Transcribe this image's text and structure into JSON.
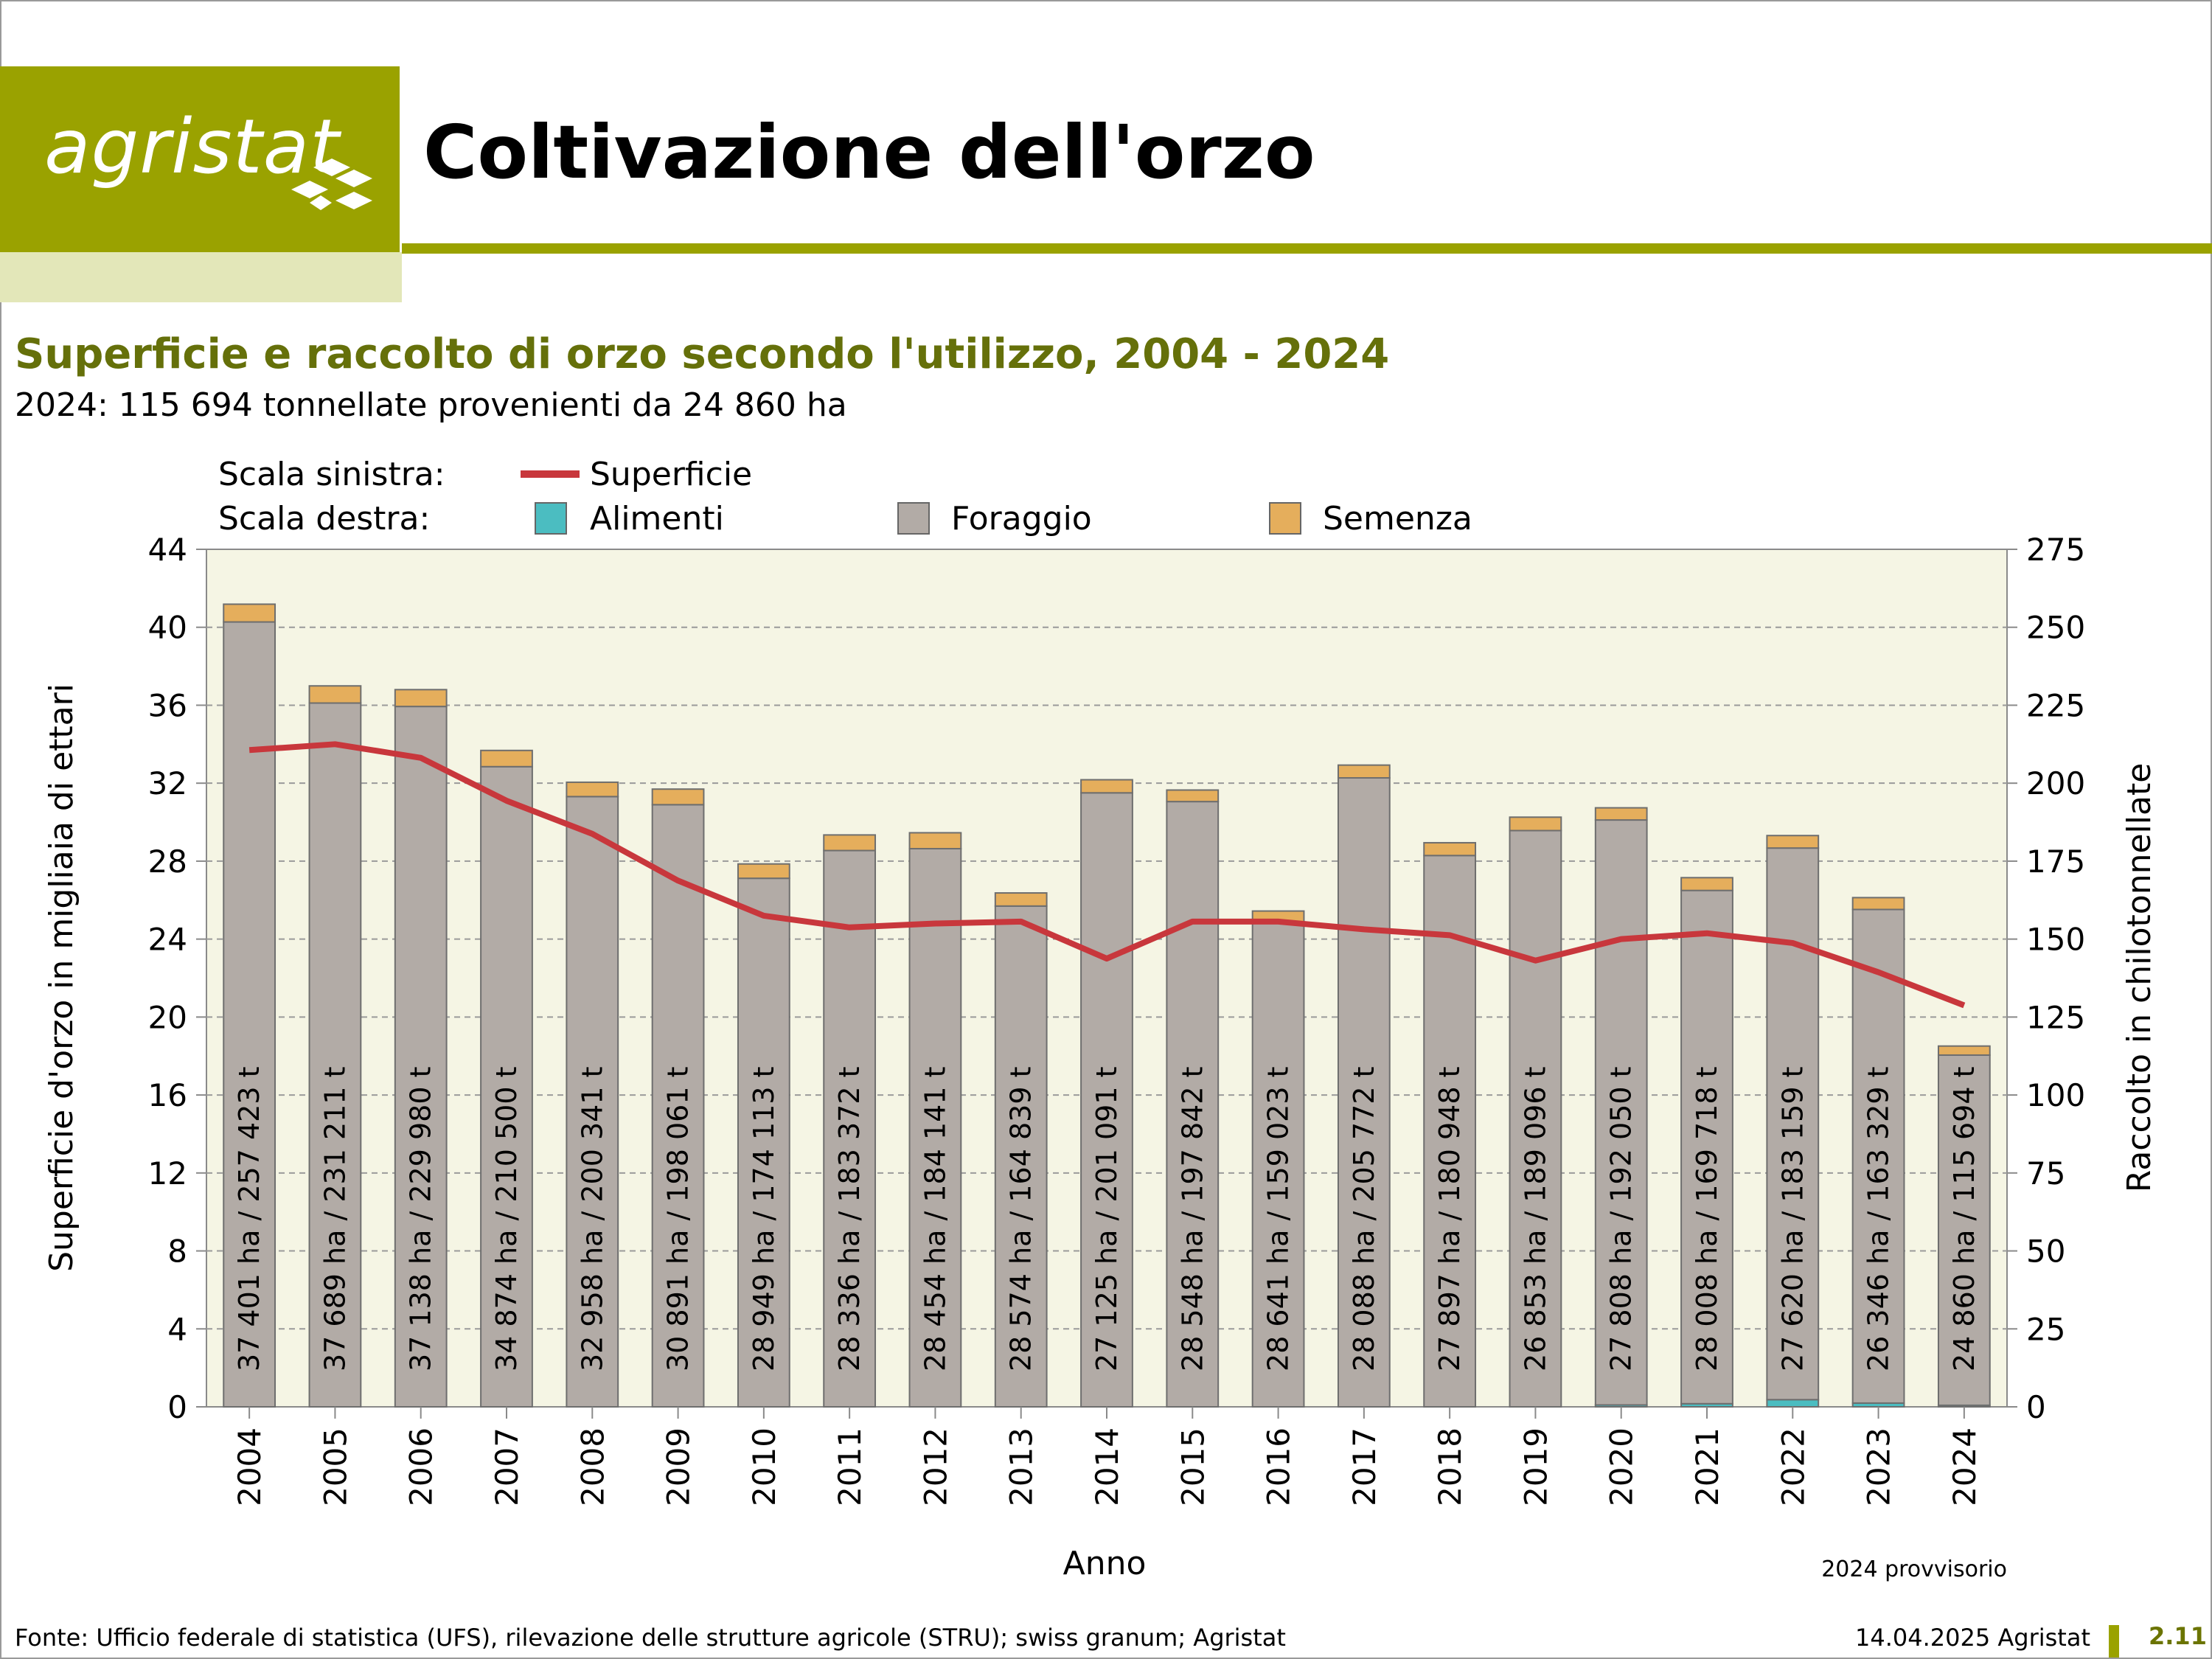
{
  "header": {
    "logo_text": "agristat",
    "page_title": "Coltivazione dell'orzo"
  },
  "chart_title": "Superficie e raccolto di orzo secondo l'utilizzo, 2004 - 2024",
  "chart_subtitle": "2024: 115 694 tonnellate provenienti da 24 860 ha",
  "legend": {
    "left_scale_label": "Scala sinistra:",
    "right_scale_label": "Scala destra:",
    "line_label": "Superficie",
    "bar_labels": [
      "Alimenti",
      "Foraggio",
      "Semenza"
    ]
  },
  "note": "2024 provvisorio",
  "footer": {
    "source": "Fonte: Ufficio federale di statistica (UFS), rilevazione delle strutture agricole (STRU); swiss granum; Agristat",
    "date": "14.04.2025 Agristat",
    "page": "2.11"
  },
  "colors": {
    "brand": "#9aa200",
    "brand_light": "#e3e7b9",
    "title": "#65700a",
    "plot_bg": "#f5f5e4",
    "alimenti": "#4bbdc1",
    "foraggio": "#b2aba6",
    "semenza": "#e5ae5c",
    "superficie": "#c8373c"
  },
  "chart_data": {
    "type": "bar",
    "xlabel": "Anno",
    "ylabel_left": "Superficie d'orzo in migliaia di ettari",
    "ylabel_right": "Raccolto in chilotonnellate",
    "ylim_left": [
      0,
      44
    ],
    "ylim_right": [
      0,
      275
    ],
    "yticks_left": [
      "0",
      "4",
      "8",
      "12",
      "16",
      "20",
      "24",
      "28",
      "32",
      "36",
      "40",
      "44"
    ],
    "yticks_right": [
      "0",
      "25",
      "50",
      "75",
      "100",
      "125",
      "150",
      "175",
      "200",
      "225",
      "250",
      "275"
    ],
    "grid": "horizontal dashed",
    "legend_position": "top",
    "categories": [
      "2004",
      "2005",
      "2006",
      "2007",
      "2008",
      "2009",
      "2010",
      "2011",
      "2012",
      "2013",
      "2014",
      "2015",
      "2016",
      "2017",
      "2018",
      "2019",
      "2020",
      "2021",
      "2022",
      "2023",
      "2024"
    ],
    "series": [
      {
        "name": "Alimenti",
        "axis": "right",
        "stacked": true,
        "values": [
          0,
          0,
          0,
          0,
          0,
          0,
          0,
          0,
          0,
          0,
          0,
          0,
          0,
          0,
          0,
          0,
          0.6,
          1.0,
          2.3,
          1.2,
          0.5
        ]
      },
      {
        "name": "Foraggio",
        "axis": "right",
        "stacked": true,
        "values": [
          251.7,
          225.7,
          224.6,
          205.3,
          195.7,
          193.1,
          169.5,
          178.4,
          179.0,
          160.6,
          196.9,
          194.1,
          155.2,
          201.7,
          176.8,
          184.8,
          187.6,
          164.6,
          176.9,
          158.3,
          112.3
        ]
      },
      {
        "name": "Semenza",
        "axis": "right",
        "stacked": true,
        "values": [
          5.7,
          5.5,
          5.4,
          5.2,
          4.6,
          5.0,
          4.6,
          5.0,
          5.1,
          4.2,
          4.2,
          3.7,
          3.8,
          4.1,
          4.1,
          4.3,
          3.9,
          4.1,
          4.0,
          3.8,
          2.9
        ]
      },
      {
        "name": "Superficie",
        "axis": "left",
        "type": "line",
        "values": [
          33.7,
          34.0,
          33.3,
          31.1,
          29.4,
          27.0,
          25.2,
          24.6,
          24.8,
          24.9,
          23.0,
          24.9,
          24.9,
          24.5,
          24.2,
          22.9,
          24.0,
          24.3,
          23.8,
          22.3,
          20.6
        ]
      }
    ],
    "bar_labels": [
      "37 401 ha / 257 423 t",
      "37 689 ha / 231 211 t",
      "37 138 ha / 229 980 t",
      "34 874 ha / 210 500 t",
      "32 958 ha / 200 341 t",
      "30 891 ha / 198 061 t",
      "28 949 ha / 174 113 t",
      "28 336 ha / 183 372 t",
      "28 454 ha / 184 141 t",
      "28 574 ha / 164 839 t",
      "27 125 ha / 201 091 t",
      "28 548 ha / 197 842 t",
      "28 641 ha / 159 023 t",
      "28 088 ha / 205 772 t",
      "27 897 ha / 180 948 t",
      "26 853 ha / 189 096 t",
      "27 808 ha / 192 050 t",
      "28 008 ha / 169 718 t",
      "27 620 ha / 183 159 t",
      "26 346 ha / 163 329 t",
      "24 860 ha / 115 694 t"
    ]
  }
}
